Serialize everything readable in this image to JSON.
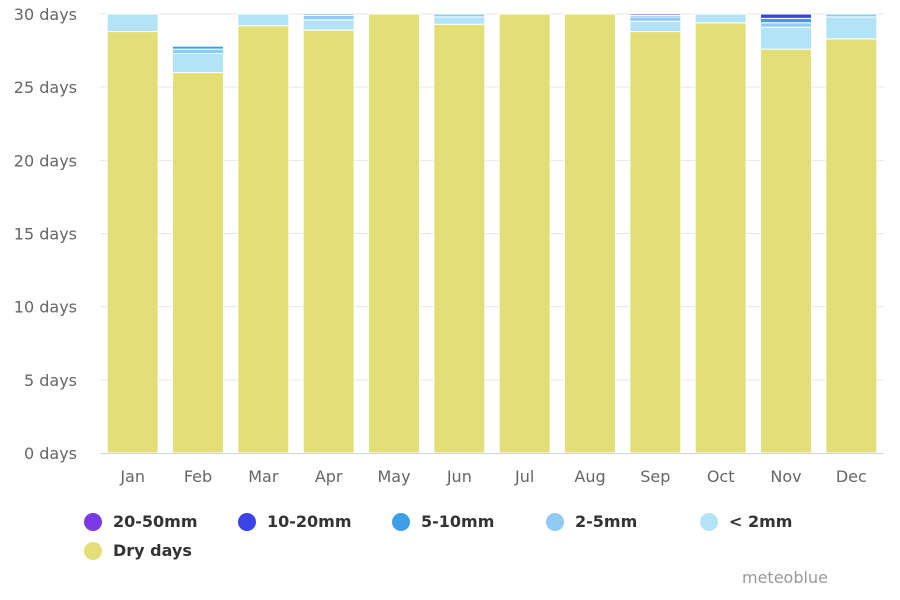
{
  "chart_data": {
    "type": "bar",
    "stacked": true,
    "title": "",
    "xlabel": "",
    "ylabel": "",
    "categories": [
      "Jan",
      "Feb",
      "Mar",
      "Apr",
      "May",
      "Jun",
      "Jul",
      "Aug",
      "Sep",
      "Oct",
      "Nov",
      "Dec"
    ],
    "ylim": [
      0,
      30
    ],
    "yticks": [
      0,
      5,
      10,
      15,
      20,
      25,
      30
    ],
    "ytick_labels": [
      "0 days",
      "5 days",
      "10 days",
      "15 days",
      "20 days",
      "25 days",
      "30 days"
    ],
    "grid": true,
    "legend_position": "bottom",
    "series": [
      {
        "name": "Dry days",
        "color": "#e3df78",
        "values": [
          28.8,
          26.0,
          29.2,
          28.9,
          30.0,
          29.3,
          30.0,
          30.0,
          28.8,
          29.4,
          27.6,
          28.3
        ]
      },
      {
        "name": "< 2mm",
        "color": "#b3e3f7",
        "values": [
          1.2,
          1.3,
          0.8,
          0.7,
          0,
          0.5,
          0,
          0,
          0.7,
          0.6,
          1.5,
          1.5
        ]
      },
      {
        "name": "2-5mm",
        "color": "#8fcbf2",
        "values": [
          0,
          0.3,
          0,
          0.3,
          0,
          0.2,
          0,
          0,
          0.3,
          0,
          0.3,
          0.2
        ]
      },
      {
        "name": "5-10mm",
        "color": "#3d9fe6",
        "values": [
          0,
          0.2,
          0,
          0.1,
          0,
          0,
          0,
          0,
          0.1,
          0,
          0.3,
          0
        ]
      },
      {
        "name": "10-20mm",
        "color": "#3b44e6",
        "values": [
          0,
          0,
          0,
          0,
          0,
          0,
          0,
          0,
          0.1,
          0,
          0.3,
          0
        ]
      },
      {
        "name": "20-50mm",
        "color": "#7c3ae6",
        "values": [
          0,
          0,
          0,
          0,
          0,
          0,
          0,
          0,
          0,
          0,
          0,
          0
        ]
      }
    ]
  },
  "legend": [
    {
      "label": "20-50mm",
      "color": "#7c3ae6"
    },
    {
      "label": "10-20mm",
      "color": "#3b44e6"
    },
    {
      "label": "5-10mm",
      "color": "#3d9fe6"
    },
    {
      "label": "2-5mm",
      "color": "#8fcbf2"
    },
    {
      "label": "< 2mm",
      "color": "#b3e3f7"
    },
    {
      "label": "Dry days",
      "color": "#e3df78"
    }
  ],
  "credit": "meteoblue"
}
